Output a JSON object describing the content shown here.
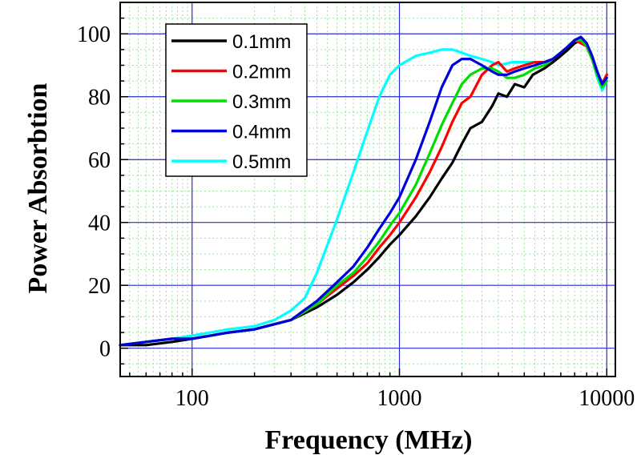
{
  "chart_data": {
    "type": "line",
    "title": "",
    "xlabel": "Frequency (MHz)",
    "ylabel": "Power Absorbtion",
    "x_scale": "log",
    "xlim": [
      45,
      11000
    ],
    "ylim": [
      -9,
      110
    ],
    "x_ticks": [
      100,
      1000,
      10000
    ],
    "x_tick_labels": [
      "100",
      "1000",
      "10000"
    ],
    "y_ticks": [
      0,
      20,
      40,
      60,
      80,
      100
    ],
    "y_tick_labels": [
      "0",
      "20",
      "40",
      "60",
      "80",
      "100"
    ],
    "grid": true,
    "legend_position": "top-left",
    "series": [
      {
        "name": "0.1mm",
        "color": "#000000",
        "points": [
          [
            45,
            1
          ],
          [
            60,
            1
          ],
          [
            80,
            2
          ],
          [
            100,
            3
          ],
          [
            150,
            5
          ],
          [
            200,
            6
          ],
          [
            300,
            9
          ],
          [
            400,
            13
          ],
          [
            500,
            17
          ],
          [
            600,
            21
          ],
          [
            700,
            25
          ],
          [
            800,
            29
          ],
          [
            900,
            33
          ],
          [
            1000,
            36
          ],
          [
            1200,
            42
          ],
          [
            1400,
            48
          ],
          [
            1600,
            54
          ],
          [
            1800,
            59
          ],
          [
            2000,
            65
          ],
          [
            2200,
            70
          ],
          [
            2500,
            72
          ],
          [
            2800,
            77
          ],
          [
            3000,
            81
          ],
          [
            3300,
            80
          ],
          [
            3600,
            84
          ],
          [
            4000,
            83
          ],
          [
            4400,
            87
          ],
          [
            5000,
            89
          ],
          [
            5500,
            91
          ],
          [
            6000,
            93
          ],
          [
            6500,
            95
          ],
          [
            7000,
            97
          ],
          [
            7500,
            98
          ],
          [
            8000,
            96
          ],
          [
            8500,
            92
          ],
          [
            9000,
            88
          ],
          [
            9500,
            84
          ],
          [
            10000,
            87
          ]
        ]
      },
      {
        "name": "0.2mm",
        "color": "#ff0000",
        "points": [
          [
            45,
            1
          ],
          [
            60,
            2
          ],
          [
            80,
            3
          ],
          [
            100,
            3
          ],
          [
            150,
            5
          ],
          [
            200,
            6
          ],
          [
            300,
            9
          ],
          [
            400,
            14
          ],
          [
            500,
            19
          ],
          [
            600,
            23
          ],
          [
            700,
            27
          ],
          [
            800,
            32
          ],
          [
            900,
            36
          ],
          [
            1000,
            40
          ],
          [
            1200,
            48
          ],
          [
            1400,
            56
          ],
          [
            1600,
            64
          ],
          [
            1800,
            72
          ],
          [
            2000,
            78
          ],
          [
            2200,
            80
          ],
          [
            2500,
            87
          ],
          [
            2800,
            90
          ],
          [
            3000,
            91
          ],
          [
            3300,
            88
          ],
          [
            3600,
            89
          ],
          [
            4000,
            90
          ],
          [
            4500,
            91
          ],
          [
            5000,
            91
          ],
          [
            5500,
            92
          ],
          [
            6000,
            94
          ],
          [
            6500,
            96
          ],
          [
            7000,
            98
          ],
          [
            7500,
            97
          ],
          [
            8000,
            96
          ],
          [
            8500,
            92
          ],
          [
            9000,
            87
          ],
          [
            9500,
            84
          ],
          [
            10000,
            87
          ]
        ]
      },
      {
        "name": "0.3mm",
        "color": "#00dd00",
        "points": [
          [
            45,
            1
          ],
          [
            60,
            2
          ],
          [
            80,
            3
          ],
          [
            100,
            3
          ],
          [
            150,
            5
          ],
          [
            200,
            6
          ],
          [
            300,
            9
          ],
          [
            400,
            14
          ],
          [
            500,
            20
          ],
          [
            600,
            24
          ],
          [
            700,
            29
          ],
          [
            800,
            34
          ],
          [
            900,
            39
          ],
          [
            1000,
            43
          ],
          [
            1200,
            52
          ],
          [
            1400,
            62
          ],
          [
            1600,
            71
          ],
          [
            1800,
            78
          ],
          [
            2000,
            84
          ],
          [
            2200,
            87
          ],
          [
            2500,
            89
          ],
          [
            2800,
            89
          ],
          [
            3000,
            88
          ],
          [
            3300,
            86
          ],
          [
            3600,
            86
          ],
          [
            4000,
            87
          ],
          [
            4500,
            89
          ],
          [
            5000,
            90
          ],
          [
            5500,
            92
          ],
          [
            6000,
            94
          ],
          [
            6500,
            96
          ],
          [
            7000,
            98
          ],
          [
            7500,
            98
          ],
          [
            8000,
            96
          ],
          [
            8500,
            92
          ],
          [
            9000,
            87
          ],
          [
            9500,
            83
          ],
          [
            10000,
            85
          ]
        ]
      },
      {
        "name": "0.4mm",
        "color": "#0000dd",
        "points": [
          [
            45,
            1
          ],
          [
            60,
            2
          ],
          [
            80,
            3
          ],
          [
            100,
            3
          ],
          [
            150,
            5
          ],
          [
            200,
            6
          ],
          [
            300,
            9
          ],
          [
            400,
            15
          ],
          [
            500,
            21
          ],
          [
            600,
            26
          ],
          [
            700,
            32
          ],
          [
            800,
            38
          ],
          [
            900,
            43
          ],
          [
            1000,
            48
          ],
          [
            1200,
            60
          ],
          [
            1400,
            72
          ],
          [
            1600,
            83
          ],
          [
            1800,
            90
          ],
          [
            2000,
            92
          ],
          [
            2200,
            92
          ],
          [
            2500,
            90
          ],
          [
            2800,
            88
          ],
          [
            3000,
            87
          ],
          [
            3300,
            87
          ],
          [
            3600,
            88
          ],
          [
            4000,
            89
          ],
          [
            4500,
            90
          ],
          [
            5000,
            91
          ],
          [
            5500,
            92
          ],
          [
            6000,
            94
          ],
          [
            6500,
            96
          ],
          [
            7000,
            98
          ],
          [
            7500,
            99
          ],
          [
            8000,
            97
          ],
          [
            8500,
            93
          ],
          [
            9000,
            88
          ],
          [
            9500,
            84
          ],
          [
            10000,
            86
          ]
        ]
      },
      {
        "name": "0.5mm",
        "color": "#00ffff",
        "points": [
          [
            45,
            1
          ],
          [
            60,
            2
          ],
          [
            80,
            3
          ],
          [
            100,
            4
          ],
          [
            150,
            6
          ],
          [
            200,
            7
          ],
          [
            250,
            9
          ],
          [
            300,
            12
          ],
          [
            350,
            16
          ],
          [
            400,
            24
          ],
          [
            450,
            33
          ],
          [
            500,
            41
          ],
          [
            600,
            56
          ],
          [
            700,
            69
          ],
          [
            800,
            80
          ],
          [
            900,
            87
          ],
          [
            1000,
            90
          ],
          [
            1200,
            93
          ],
          [
            1400,
            94
          ],
          [
            1600,
            95
          ],
          [
            1800,
            95
          ],
          [
            2000,
            94
          ],
          [
            2200,
            93
          ],
          [
            2500,
            92
          ],
          [
            2800,
            91
          ],
          [
            3000,
            90
          ],
          [
            3500,
            91
          ],
          [
            4000,
            91
          ],
          [
            4500,
            91
          ],
          [
            5000,
            91
          ],
          [
            5500,
            92
          ],
          [
            6000,
            94
          ],
          [
            6500,
            96
          ],
          [
            7000,
            97
          ],
          [
            7500,
            99
          ],
          [
            8000,
            97
          ],
          [
            8500,
            92
          ],
          [
            9000,
            86
          ],
          [
            9500,
            82
          ],
          [
            10000,
            85
          ]
        ]
      }
    ]
  }
}
